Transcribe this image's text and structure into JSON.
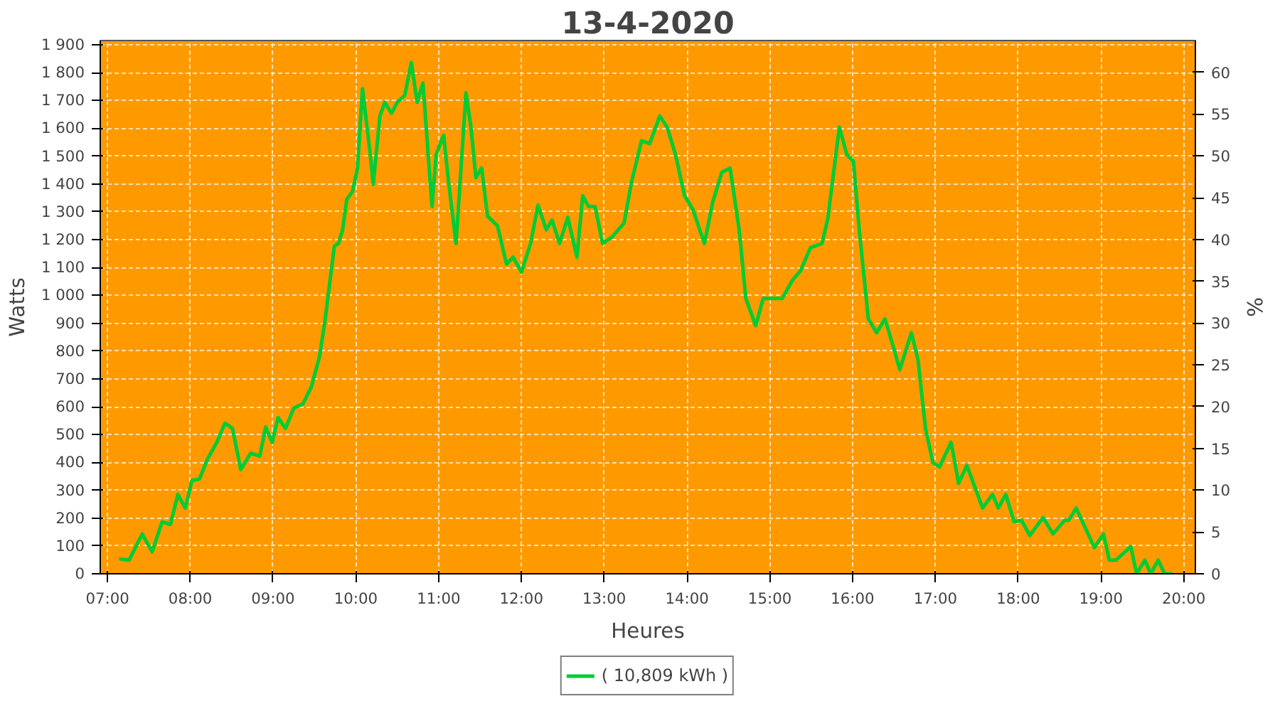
{
  "chart_data": {
    "type": "line",
    "title": "13-4-2020",
    "xlabel": "Heures",
    "ylabel": "Watts",
    "y2label": "%",
    "xlim": [
      6.913,
      20.14
    ],
    "ylim": [
      0,
      1915
    ],
    "y2lim": [
      0,
      63.8
    ],
    "xticks": [
      {
        "value": 7,
        "label": "07:00"
      },
      {
        "value": 8,
        "label": "08:00"
      },
      {
        "value": 9,
        "label": "09:00"
      },
      {
        "value": 10,
        "label": "10:00"
      },
      {
        "value": 11,
        "label": "11:00"
      },
      {
        "value": 12,
        "label": "12:00"
      },
      {
        "value": 13,
        "label": "13:00"
      },
      {
        "value": 14,
        "label": "14:00"
      },
      {
        "value": 15,
        "label": "15:00"
      },
      {
        "value": 16,
        "label": "16:00"
      },
      {
        "value": 17,
        "label": "17:00"
      },
      {
        "value": 18,
        "label": "18:00"
      },
      {
        "value": 19,
        "label": "19:00"
      },
      {
        "value": 20,
        "label": "20:00"
      }
    ],
    "yticks": [
      0,
      100,
      200,
      300,
      400,
      500,
      600,
      700,
      800,
      900,
      {
        "value": 1000,
        "label": "1 000"
      },
      {
        "value": 1100,
        "label": "1 100"
      },
      {
        "value": 1200,
        "label": "1 200"
      },
      {
        "value": 1300,
        "label": "1 300"
      },
      {
        "value": 1400,
        "label": "1 400"
      },
      {
        "value": 1500,
        "label": "1 500"
      },
      {
        "value": 1600,
        "label": "1 600"
      },
      {
        "value": 1700,
        "label": "1 700"
      },
      {
        "value": 1800,
        "label": "1 800"
      },
      {
        "value": 1900,
        "label": "1 900"
      }
    ],
    "y2ticks": [
      0,
      5,
      10,
      15,
      20,
      25,
      30,
      35,
      40,
      45,
      50,
      55,
      60
    ],
    "grid": true,
    "legend": "bottom",
    "marker": "none",
    "line_style": "solid",
    "series": [
      {
        "name": "( 10,809 kWh )",
        "color": "#00cc33",
        "x": [
          7.14,
          7.26,
          7.42,
          7.54,
          7.66,
          7.76,
          7.85,
          7.94,
          8.02,
          8.11,
          8.21,
          8.32,
          8.42,
          8.51,
          8.61,
          8.73,
          8.84,
          8.91,
          8.99,
          9.06,
          9.15,
          9.25,
          9.36,
          9.46,
          9.56,
          9.63,
          9.74,
          9.79,
          9.84,
          9.89,
          9.96,
          10.02,
          10.08,
          10.17,
          10.21,
          10.29,
          10.35,
          10.43,
          10.5,
          10.59,
          10.67,
          10.74,
          10.81,
          10.92,
          10.97,
          11.06,
          11.12,
          11.21,
          11.33,
          11.39,
          11.45,
          11.52,
          11.59,
          11.71,
          11.82,
          11.9,
          12.0,
          12.11,
          12.2,
          12.3,
          12.37,
          12.46,
          12.56,
          12.67,
          12.74,
          12.81,
          12.89,
          12.98,
          13.1,
          13.24,
          13.33,
          13.45,
          13.55,
          13.67,
          13.76,
          13.86,
          13.97,
          14.07,
          14.21,
          14.31,
          14.42,
          14.52,
          14.63,
          14.71,
          14.83,
          14.92,
          15.02,
          15.15,
          15.27,
          15.37,
          15.49,
          15.63,
          15.7,
          15.84,
          15.93,
          16.01,
          16.08,
          16.19,
          16.29,
          16.39,
          16.48,
          16.57,
          16.71,
          16.79,
          16.88,
          16.97,
          17.05,
          17.19,
          17.28,
          17.38,
          17.57,
          17.69,
          17.76,
          17.85,
          17.95,
          18.04,
          18.14,
          18.3,
          18.42,
          18.56,
          18.61,
          18.7,
          18.92,
          19.03,
          19.1,
          19.18,
          19.36,
          19.43,
          19.53,
          19.6,
          19.69,
          19.77,
          19.86
        ],
        "values": [
          54,
          49,
          143,
          79,
          187,
          177,
          285,
          236,
          335,
          340,
          413,
          472,
          541,
          522,
          374,
          433,
          423,
          527,
          472,
          561,
          522,
          595,
          610,
          669,
          778,
          915,
          1176,
          1186,
          1235,
          1344,
          1373,
          1457,
          1742,
          1516,
          1398,
          1644,
          1693,
          1654,
          1693,
          1718,
          1836,
          1693,
          1762,
          1319,
          1506,
          1575,
          1407,
          1186,
          1727,
          1604,
          1422,
          1457,
          1284,
          1250,
          1112,
          1137,
          1083,
          1186,
          1324,
          1235,
          1270,
          1186,
          1280,
          1137,
          1358,
          1319,
          1319,
          1186,
          1211,
          1260,
          1407,
          1555,
          1545,
          1644,
          1604,
          1506,
          1358,
          1309,
          1186,
          1334,
          1442,
          1457,
          1235,
          989,
          891,
          989,
          989,
          989,
          1053,
          1088,
          1171,
          1186,
          1275,
          1604,
          1506,
          1481,
          1235,
          915,
          866,
          915,
          827,
          733,
          866,
          768,
          522,
          399,
          384,
          472,
          325,
          389,
          236,
          285,
          236,
          285,
          187,
          192,
          138,
          202,
          143,
          192,
          192,
          236,
          94,
          143,
          49,
          49,
          98,
          0,
          49,
          0,
          49,
          0,
          0
        ]
      }
    ]
  }
}
